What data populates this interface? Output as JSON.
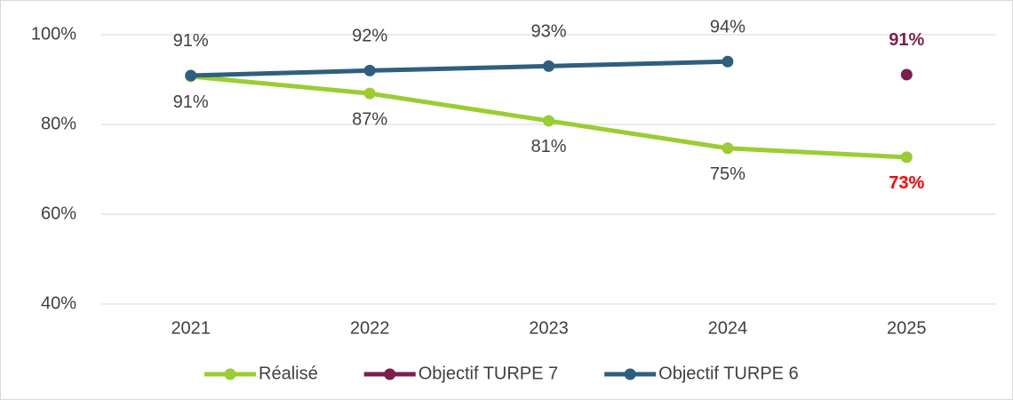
{
  "chart_data": {
    "type": "line",
    "categories": [
      "2021",
      "2022",
      "2023",
      "2024",
      "2025"
    ],
    "ylim": [
      40,
      100
    ],
    "yticks": [
      {
        "value": 40,
        "label": "40%"
      },
      {
        "value": 60,
        "label": "60%"
      },
      {
        "value": 80,
        "label": "80%"
      },
      {
        "value": 100,
        "label": "100%"
      }
    ],
    "grid": true,
    "legend": "bottom",
    "series": [
      {
        "name": "Réalisé",
        "color": "#9acd32",
        "values": [
          90.7,
          86.9,
          80.8,
          74.7,
          72.7
        ],
        "value_labels": [
          "91%",
          "87%",
          "81%",
          "75%",
          "73%"
        ],
        "value_label_colors": [
          "#404040",
          "#404040",
          "#404040",
          "#404040",
          "#ff0000"
        ],
        "label_position": "below"
      },
      {
        "name": "Objectif TURPE 7",
        "color": "#7b1f4e",
        "values": [
          null,
          null,
          null,
          null,
          91.1
        ],
        "value_labels": [
          null,
          null,
          null,
          null,
          "91%"
        ],
        "value_label_colors": [
          null,
          null,
          null,
          null,
          "#7b1f4e"
        ],
        "label_position": "above"
      },
      {
        "name": "Objectif TURPE 6",
        "color": "#2e5f7f",
        "values": [
          90.9,
          92,
          93,
          94,
          null
        ],
        "value_labels": [
          "91%",
          "92%",
          "93%",
          "94%",
          null
        ],
        "value_label_colors": [
          "#404040",
          "#404040",
          "#404040",
          "#404040",
          null
        ],
        "label_position": "above"
      }
    ]
  }
}
